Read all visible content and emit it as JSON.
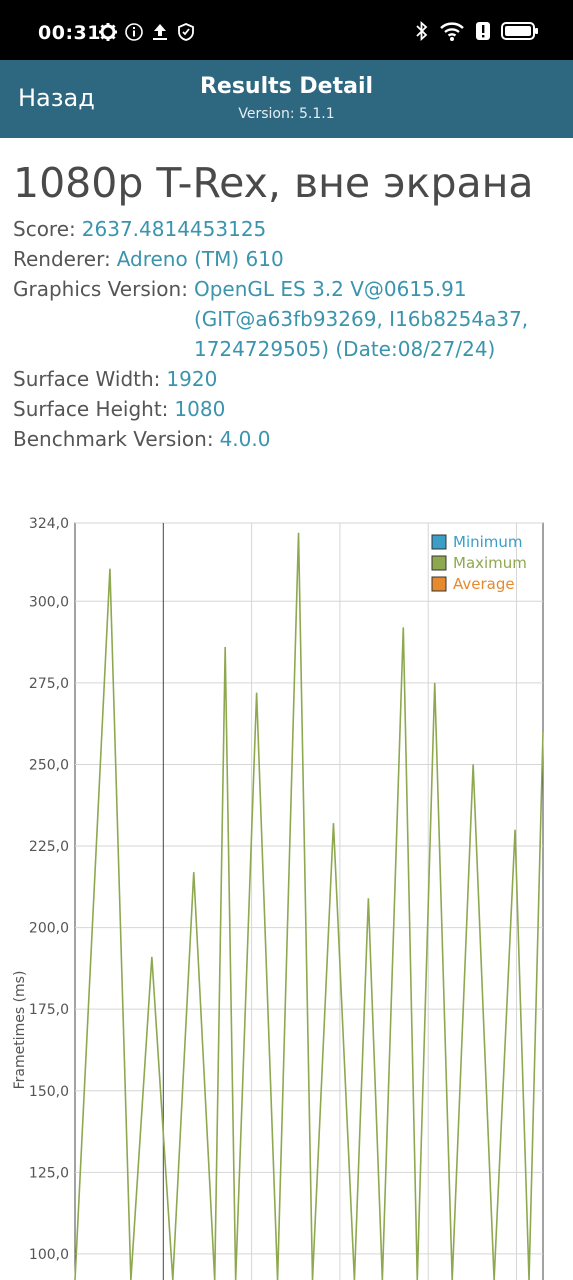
{
  "status": {
    "time": "00:31",
    "left_icons": [
      "gear-icon",
      "info-icon",
      "upload-icon",
      "shield-icon"
    ],
    "right_icons": [
      "bluetooth-icon",
      "wifi-icon",
      "alert-icon",
      "battery-icon"
    ]
  },
  "app_bar": {
    "back_label": "Назад",
    "title": "Results Detail",
    "subtitle": "Version: 5.1.1",
    "color": "#2d6780"
  },
  "details": {
    "title": "1080p T-Rex, вне экрана",
    "score_label": "Score:",
    "score": "2637.4814453125",
    "renderer_label": "Renderer:",
    "renderer": "Adreno (TM) 610",
    "graphics_label": "Graphics Version:",
    "graphics": "OpenGL ES 3.2 V@0615.91 (GIT@a63fb93269, I16b8254a37, 1724729505) (Date:08/27/24)",
    "width_label": "Surface Width:",
    "width": "1920",
    "height_label": "Surface Height:",
    "height": "1080",
    "benchmark_label": "Benchmark Version:",
    "benchmark": "4.0.0"
  },
  "chart_data": {
    "type": "line",
    "title": "",
    "ylabel": "Frametimes (ms)",
    "xlabel": "",
    "ylim": [
      92,
      324
    ],
    "yticks": [
      "324,0",
      "300,0",
      "275,0",
      "250,0",
      "225,0",
      "200,0",
      "175,0",
      "150,0",
      "125,0",
      "100,0"
    ],
    "ytick_values": [
      324,
      300,
      275,
      250,
      225,
      200,
      175,
      150,
      125,
      100
    ],
    "legend_position": "top-right",
    "series": [
      {
        "name": "Minimum",
        "color": "#3a9ec7",
        "values": []
      },
      {
        "name": "Maximum",
        "color": "#8ea84f",
        "x": [
          0,
          5,
          8,
          11,
          14,
          17,
          20,
          21.5,
          23,
          26,
          29,
          32,
          34,
          37,
          40,
          42,
          44,
          47,
          49,
          51.5,
          54,
          57,
          60,
          63,
          65,
          67
        ],
        "values": [
          92,
          310,
          92,
          191,
          92,
          217,
          92,
          286,
          92,
          272,
          92,
          321,
          92,
          232,
          92,
          209,
          92,
          292,
          92,
          275,
          92,
          250,
          92,
          230,
          92,
          260
        ]
      },
      {
        "name": "Average",
        "color": "#e58a2e",
        "values": []
      }
    ],
    "grid": true
  }
}
